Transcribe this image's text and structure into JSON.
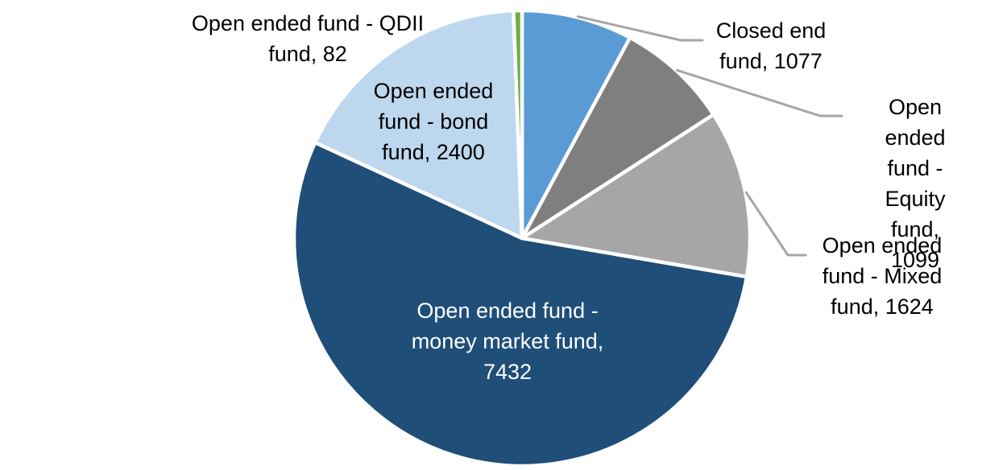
{
  "chart_data": {
    "type": "pie",
    "title": "",
    "start_angle_deg": 0,
    "direction": "clockwise",
    "total": 13714,
    "slice_border_color": "#FFFFFF",
    "leader_line_color": "#A6A6A6",
    "slices": [
      {
        "name": "Closed end fund",
        "value": 1077,
        "color": "#5B9BD5",
        "label": "Closed end\nfund, 1077"
      },
      {
        "name": "Open ended fund - Equity fund",
        "value": 1099,
        "color": "#7F7F7F",
        "label": "Open ended\nfund - Equity\nfund, 1099"
      },
      {
        "name": "Open ended fund - Mixed fund",
        "value": 1624,
        "color": "#A6A6A6",
        "label": "Open ended\nfund - Mixed\nfund, 1624"
      },
      {
        "name": "Open ended fund - money market fund",
        "value": 7432,
        "color": "#1F4E79",
        "label": "Open ended fund -\nmoney market fund,\n7432"
      },
      {
        "name": "Open ended fund - bond fund",
        "value": 2400,
        "color": "#BDD7EE",
        "label": "Open ended\nfund - bond\nfund, 2400"
      },
      {
        "name": "Open ended fund - QDII fund",
        "value": 82,
        "color": "#70AD47",
        "label": "Open ended fund - QDII\nfund, 82"
      }
    ]
  }
}
